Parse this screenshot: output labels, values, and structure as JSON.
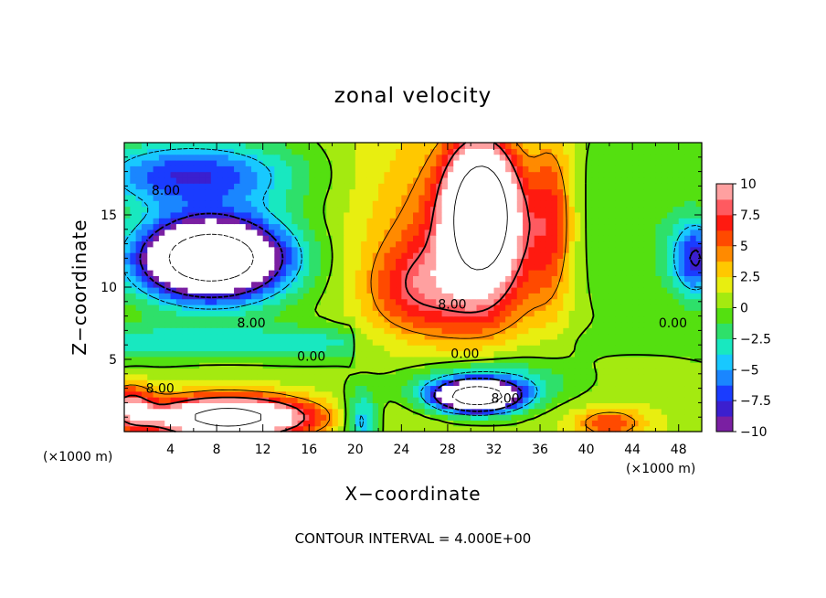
{
  "chart_data": {
    "type": "heatmap",
    "title": "zonal velocity",
    "xlabel": "X−coordinate",
    "ylabel": "Z−coordinate",
    "x_unit": "(×1000 m)",
    "y_unit": "(×1000 m)",
    "footer": "CONTOUR INTERVAL = 4.000E+00",
    "xlim": [
      0,
      50
    ],
    "ylim": [
      0,
      20
    ],
    "x_ticks": [
      "4",
      "8",
      "12",
      "16",
      "20",
      "24",
      "28",
      "32",
      "36",
      "40",
      "44",
      "48"
    ],
    "y_ticks": [
      "5",
      "10",
      "15"
    ],
    "colorbar": {
      "range": [
        -10,
        10
      ],
      "ticks": [
        "10",
        "7.5",
        "5",
        "2.5",
        "0",
        "−2.5",
        "−5",
        "−7.5",
        "−10"
      ],
      "colors": [
        "#7a1fa2",
        "#3b1fcf",
        "#1a3cff",
        "#1a86ff",
        "#18c8ff",
        "#18e8c0",
        "#2ee06a",
        "#54e010",
        "#a4ea10",
        "#e8ee10",
        "#ffc800",
        "#ff8a00",
        "#ff4a00",
        "#ff1a10",
        "#ff5a60",
        "#ffa0a0"
      ]
    },
    "contour_labels": [
      {
        "text": "8.00",
        "x": 3.6,
        "y": 16.4
      },
      {
        "text": "8.00",
        "x": 11.0,
        "y": 7.2
      },
      {
        "text": "0.00",
        "x": 16.2,
        "y": 4.9
      },
      {
        "text": "8.00",
        "x": 3.1,
        "y": 2.7
      },
      {
        "text": "8.00",
        "x": 28.4,
        "y": 8.5
      },
      {
        "text": "0.00",
        "x": 29.5,
        "y": 5.1
      },
      {
        "text": "8.00",
        "x": 33.0,
        "y": 2.0
      },
      {
        "text": "0.00",
        "x": 47.5,
        "y": 7.2
      }
    ],
    "features": [
      {
        "kind": "core",
        "sign": "negative",
        "x": 7.5,
        "y": 12.0,
        "sx": 6.0,
        "sy": 2.6,
        "amp": -22
      },
      {
        "kind": "core",
        "sign": "negative",
        "x": 5.5,
        "y": 17.8,
        "sx": 8.5,
        "sy": 2.2,
        "amp": -7
      },
      {
        "kind": "core",
        "sign": "negative",
        "x": 30.5,
        "y": 2.4,
        "sx": 3.5,
        "sy": 1.0,
        "amp": -20
      },
      {
        "kind": "core",
        "sign": "negative",
        "x": 31.0,
        "y": 3.5,
        "sx": 7.0,
        "sy": 1.6,
        "amp": -6
      },
      {
        "kind": "core",
        "sign": "negative",
        "x": 49.5,
        "y": 12.0,
        "sx": 2.0,
        "sy": 2.5,
        "amp": -8
      },
      {
        "kind": "core",
        "sign": "negative",
        "x": 20.5,
        "y": 0.8,
        "sx": 1.5,
        "sy": 2.0,
        "amp": -6
      },
      {
        "kind": "core",
        "sign": "positive",
        "x": 31.0,
        "y": 15.5,
        "sx": 3.0,
        "sy": 4.5,
        "amp": 20
      },
      {
        "kind": "core",
        "sign": "positive",
        "x": 31.0,
        "y": 11.0,
        "sx": 5.5,
        "sy": 6.0,
        "amp": 6
      },
      {
        "kind": "core",
        "sign": "positive",
        "x": 37.0,
        "y": 15.0,
        "sx": 2.0,
        "sy": 6.0,
        "amp": 6
      },
      {
        "kind": "core",
        "sign": "positive",
        "x": 9.0,
        "y": 1.0,
        "sx": 7.0,
        "sy": 1.4,
        "amp": 18
      },
      {
        "kind": "core",
        "sign": "positive",
        "x": 0.5,
        "y": 1.8,
        "sx": 2.0,
        "sy": 1.6,
        "amp": 8
      },
      {
        "kind": "core",
        "sign": "positive",
        "x": 25.0,
        "y": 10.0,
        "sx": 4.0,
        "sy": 3.0,
        "amp": 4
      },
      {
        "kind": "core",
        "sign": "positive",
        "x": 42.0,
        "y": 0.6,
        "sx": 3.0,
        "sy": 1.0,
        "amp": 5
      }
    ]
  }
}
